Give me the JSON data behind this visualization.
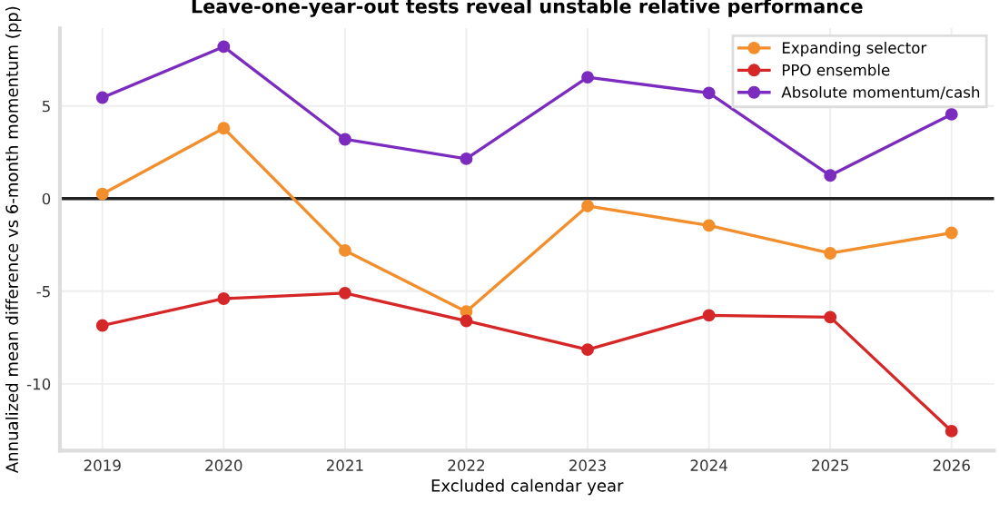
{
  "chart_data": {
    "type": "line",
    "title": "Leave-one-year-out tests reveal unstable relative performance",
    "xlabel": "Excluded calendar year",
    "ylabel": "Annualized mean difference vs 6-month momentum (pp)",
    "x": [
      2019,
      2020,
      2021,
      2022,
      2023,
      2024,
      2025,
      2026
    ],
    "series": [
      {
        "name": "Expanding selector",
        "color": "#f28e2b",
        "values": [
          0.25,
          3.8,
          -2.8,
          -6.1,
          -0.4,
          -1.45,
          -2.95,
          -1.85
        ]
      },
      {
        "name": "PPO ensemble",
        "color": "#d62728",
        "values": [
          -6.85,
          -5.4,
          -5.1,
          -6.6,
          -8.15,
          -6.3,
          -6.4,
          -12.55
        ]
      },
      {
        "name": "Absolute momentum/cash",
        "color": "#7b2cbf",
        "values": [
          5.45,
          8.2,
          3.2,
          2.15,
          6.55,
          5.7,
          1.25,
          4.55
        ]
      }
    ],
    "xlim": [
      2018.65,
      2026.35
    ],
    "ylim": [
      -13.6,
      9.2
    ],
    "xticks": [
      2019,
      2020,
      2021,
      2022,
      2023,
      2024,
      2025,
      2026
    ],
    "yticks": [
      -10,
      -5,
      0,
      5
    ],
    "ref_lines": [
      {
        "axis": "y",
        "value": 0,
        "color": "#222222"
      }
    ],
    "grid": true,
    "legend": "top right",
    "marker": "circle",
    "line_style": "solid"
  }
}
